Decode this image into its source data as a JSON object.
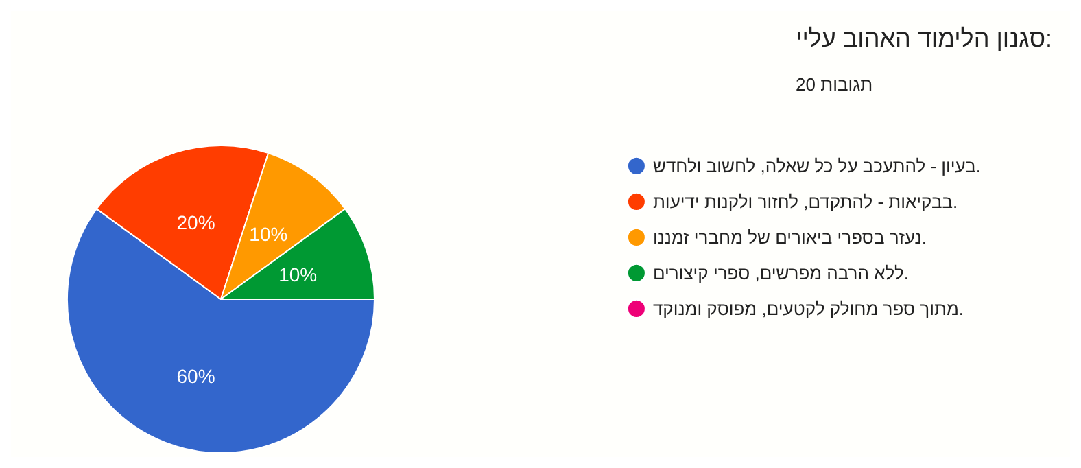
{
  "chart_data": {
    "type": "pie",
    "title": "סגנון הלימוד האהוב עליי:",
    "subtitle": "20 תגובות",
    "categories": [
      "בעיון - להתעכב על כל שאלה, לחשוב ולחדש.",
      "בבקיאות - להתקדם, לחזור ולקנות ידיעות.",
      "נעזר בספרי ביאורים של מחברי זמננו.",
      "ללא הרבה מפרשים, ספרי קיצורים.",
      "מתוך ספר מחולק לקטעים, מפוסק ומנוקד."
    ],
    "values": [
      60,
      20,
      10,
      10,
      0
    ],
    "colors": [
      "#3366cc",
      "#ff3d00",
      "#ff9900",
      "#009933",
      "#ee0077"
    ],
    "value_labels": [
      "60%",
      "20%",
      "10%",
      "10%",
      null
    ],
    "legend": "right"
  }
}
